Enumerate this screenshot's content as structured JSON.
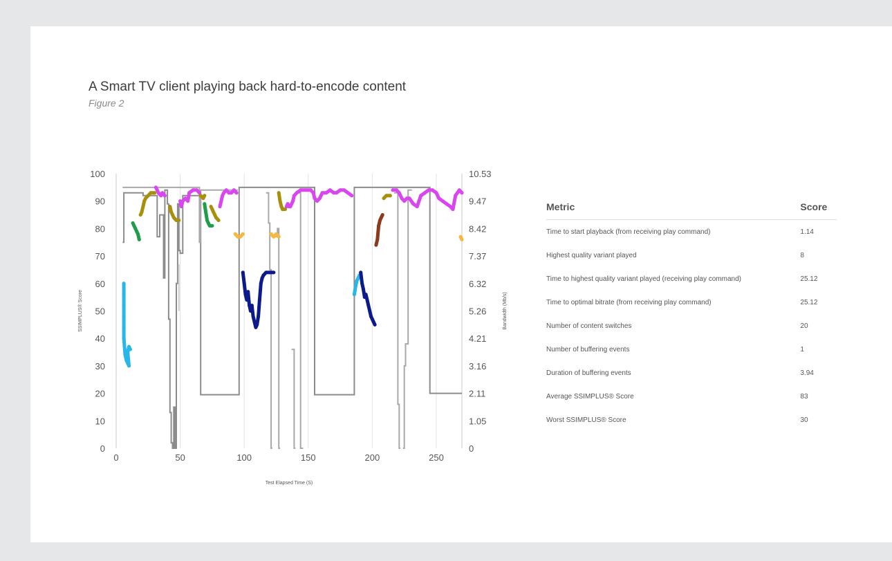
{
  "header": {
    "title": "A Smart TV client playing back hard-to-encode content",
    "subtitle": "Figure 2"
  },
  "chart_data": {
    "type": "line",
    "xlabel": "Test Elapsed Time (S)",
    "ylabel": "SSIMPLUS® Score",
    "y2label": "Bandwidth (Mb/s)",
    "xlim": [
      0,
      270
    ],
    "ylim": [
      0,
      100
    ],
    "x_ticks": [
      "0",
      "50",
      "100",
      "150",
      "200",
      "250"
    ],
    "y_ticks": [
      "0",
      "10",
      "20",
      "30",
      "40",
      "50",
      "60",
      "70",
      "80",
      "90",
      "100"
    ],
    "y2_ticks": [
      "0",
      "1.05",
      "2.11",
      "3.16",
      "4.21",
      "5.26",
      "6.32",
      "7.37",
      "8.42",
      "9.47",
      "10.53"
    ],
    "grid": "vertical",
    "series": [
      {
        "color": "#29b6e8",
        "points": [
          [
            6,
            60
          ],
          [
            6,
            56
          ],
          [
            6,
            52
          ],
          [
            6,
            48
          ],
          [
            6,
            44
          ],
          [
            6,
            40
          ],
          [
            7,
            34
          ],
          [
            8,
            32
          ],
          [
            9,
            31
          ],
          [
            10,
            30
          ],
          [
            9,
            35
          ],
          [
            10,
            37
          ],
          [
            11,
            36
          ]
        ]
      },
      {
        "color": "#1e9e4a",
        "points": [
          [
            13,
            82
          ],
          [
            14,
            81
          ],
          [
            15,
            80
          ],
          [
            16,
            79
          ],
          [
            17,
            78
          ],
          [
            18,
            76
          ]
        ]
      },
      {
        "color": "#a8900c",
        "points": [
          [
            19,
            85
          ],
          [
            20,
            86
          ],
          [
            21,
            88
          ],
          [
            22,
            90
          ],
          [
            23,
            91
          ],
          [
            25,
            92
          ],
          [
            27,
            93
          ],
          [
            30,
            93
          ]
        ]
      },
      {
        "color": "#d946ef",
        "points": [
          [
            31,
            95
          ],
          [
            32,
            94
          ],
          [
            33,
            93
          ],
          [
            35,
            92
          ],
          [
            36,
            93
          ],
          [
            38,
            92
          ]
        ]
      },
      {
        "color": "#a8900c",
        "points": [
          [
            42,
            88
          ],
          [
            43,
            86
          ],
          [
            44,
            85
          ],
          [
            45,
            84
          ],
          [
            47,
            83
          ],
          [
            49,
            83
          ]
        ]
      },
      {
        "color": "#d946ef",
        "points": [
          [
            50,
            90
          ],
          [
            51,
            88
          ],
          [
            52,
            90
          ],
          [
            54,
            91
          ],
          [
            56,
            90
          ],
          [
            57,
            93
          ],
          [
            60,
            94
          ],
          [
            63,
            94
          ],
          [
            65,
            93
          ]
        ]
      },
      {
        "color": "#a8900c",
        "points": [
          [
            66,
            92
          ],
          [
            68,
            91
          ],
          [
            69,
            92
          ]
        ]
      },
      {
        "color": "#1e9e4a",
        "points": [
          [
            69,
            89
          ],
          [
            70,
            86
          ],
          [
            71,
            83
          ],
          [
            72,
            82
          ],
          [
            73,
            81
          ],
          [
            75,
            81
          ]
        ]
      },
      {
        "color": "#a8900c",
        "points": [
          [
            74,
            88
          ],
          [
            75,
            87
          ],
          [
            76,
            86
          ],
          [
            77,
            85
          ],
          [
            78,
            84
          ],
          [
            80,
            83
          ]
        ]
      },
      {
        "color": "#d946ef",
        "points": [
          [
            81,
            88
          ],
          [
            82,
            90
          ],
          [
            83,
            92
          ],
          [
            84,
            93
          ],
          [
            86,
            94
          ],
          [
            88,
            93
          ],
          [
            90,
            93
          ],
          [
            92,
            94
          ],
          [
            94,
            93
          ]
        ]
      },
      {
        "color": "#f5b942",
        "points": [
          [
            93,
            78
          ],
          [
            95,
            77
          ],
          [
            97,
            77
          ],
          [
            99,
            78
          ]
        ]
      },
      {
        "color": "#0d1a8c",
        "points": [
          [
            99,
            64
          ],
          [
            100,
            60
          ],
          [
            101,
            56
          ],
          [
            102,
            54
          ],
          [
            103,
            57
          ],
          [
            104,
            52
          ],
          [
            105,
            50
          ],
          [
            106,
            52
          ],
          [
            107,
            48
          ],
          [
            108,
            46
          ],
          [
            109,
            44
          ],
          [
            110,
            45
          ],
          [
            111,
            48
          ],
          [
            112,
            54
          ],
          [
            113,
            60
          ],
          [
            114,
            62
          ],
          [
            115,
            63
          ],
          [
            117,
            64
          ],
          [
            120,
            64
          ],
          [
            123,
            64
          ]
        ]
      },
      {
        "color": "#f5b942",
        "points": [
          [
            121,
            78
          ],
          [
            123,
            77
          ],
          [
            125,
            78
          ],
          [
            127,
            77
          ]
        ]
      },
      {
        "color": "#a8900c",
        "points": [
          [
            127,
            93
          ],
          [
            128,
            90
          ],
          [
            129,
            88
          ],
          [
            130,
            87
          ],
          [
            132,
            87
          ]
        ]
      },
      {
        "color": "#d946ef",
        "points": [
          [
            133,
            88
          ],
          [
            134,
            89
          ],
          [
            135,
            88
          ],
          [
            136,
            88
          ],
          [
            138,
            90
          ],
          [
            139,
            92
          ],
          [
            141,
            93
          ],
          [
            144,
            94
          ],
          [
            148,
            94
          ],
          [
            152,
            94
          ],
          [
            154,
            93
          ],
          [
            155,
            91
          ],
          [
            157,
            90
          ],
          [
            159,
            91
          ],
          [
            161,
            93
          ],
          [
            164,
            93
          ],
          [
            167,
            94
          ],
          [
            170,
            93
          ],
          [
            172,
            93
          ],
          [
            175,
            94
          ],
          [
            178,
            94
          ],
          [
            181,
            93
          ],
          [
            184,
            92
          ]
        ]
      },
      {
        "color": "#29b6e8",
        "points": [
          [
            186,
            56
          ],
          [
            187,
            59
          ],
          [
            188,
            61
          ],
          [
            189,
            62
          ],
          [
            190,
            63
          ]
        ]
      },
      {
        "color": "#0d1a8c",
        "points": [
          [
            191,
            64
          ],
          [
            192,
            60
          ],
          [
            193,
            58
          ],
          [
            194,
            55
          ],
          [
            195,
            56
          ],
          [
            196,
            54
          ],
          [
            197,
            52
          ],
          [
            198,
            50
          ],
          [
            199,
            48
          ],
          [
            200,
            47
          ],
          [
            201,
            46
          ],
          [
            202,
            45
          ]
        ]
      },
      {
        "color": "#8b3a1e",
        "points": [
          [
            203,
            74
          ],
          [
            204,
            76
          ],
          [
            205,
            81
          ],
          [
            206,
            83
          ],
          [
            207,
            84
          ],
          [
            208,
            85
          ]
        ]
      },
      {
        "color": "#a8900c",
        "points": [
          [
            209,
            91
          ],
          [
            211,
            92
          ],
          [
            214,
            92
          ]
        ]
      },
      {
        "color": "#d946ef",
        "points": [
          [
            216,
            94
          ],
          [
            219,
            94
          ],
          [
            221,
            93
          ],
          [
            223,
            91
          ],
          [
            225,
            90
          ],
          [
            227,
            91
          ],
          [
            229,
            91
          ],
          [
            232,
            89
          ],
          [
            235,
            88
          ],
          [
            238,
            92
          ],
          [
            241,
            93
          ],
          [
            244,
            94
          ],
          [
            247,
            94
          ],
          [
            250,
            93
          ],
          [
            252,
            91
          ],
          [
            255,
            90
          ],
          [
            258,
            89
          ],
          [
            261,
            88
          ],
          [
            263,
            87
          ],
          [
            265,
            92
          ],
          [
            268,
            94
          ],
          [
            270,
            93
          ]
        ]
      },
      {
        "color": "#f5b942",
        "points": [
          [
            269,
            77
          ],
          [
            270,
            76
          ]
        ]
      }
    ],
    "bandwidth_lines": [
      {
        "color": "#8c8c8c",
        "points": [
          [
            5,
            75
          ],
          [
            6,
            75
          ],
          [
            6,
            93
          ],
          [
            21,
            93
          ],
          [
            21,
            92
          ],
          [
            32,
            92
          ],
          [
            32,
            77
          ],
          [
            34,
            77
          ],
          [
            34,
            85
          ],
          [
            37,
            85
          ],
          [
            37,
            62
          ],
          [
            38,
            62
          ],
          [
            38,
            94
          ],
          [
            40,
            94
          ],
          [
            40,
            89
          ],
          [
            41,
            89
          ],
          [
            41,
            47
          ],
          [
            42,
            47
          ],
          [
            42,
            13
          ],
          [
            43,
            13
          ],
          [
            43,
            2
          ],
          [
            44,
            2
          ],
          [
            44,
            0
          ],
          [
            45,
            0
          ],
          [
            45,
            15
          ],
          [
            46,
            15
          ],
          [
            46,
            0
          ],
          [
            47,
            0
          ],
          [
            47,
            60
          ],
          [
            48,
            60
          ],
          [
            48,
            89
          ],
          [
            49,
            89
          ],
          [
            49,
            72
          ],
          [
            50,
            72
          ],
          [
            50,
            71
          ],
          [
            52,
            71
          ],
          [
            52,
            92
          ],
          [
            66,
            92
          ],
          [
            66,
            19.5
          ],
          [
            96,
            19.5
          ],
          [
            96,
            95
          ],
          [
            155,
            95
          ],
          [
            155,
            19.5
          ],
          [
            186,
            19.5
          ],
          [
            186,
            95
          ],
          [
            245,
            95
          ],
          [
            245,
            20
          ],
          [
            270,
            20
          ]
        ]
      },
      {
        "color": "#a8a8a8",
        "points": [
          [
            5,
            95
          ],
          [
            65,
            95
          ],
          [
            65,
            75
          ],
          [
            66,
            75
          ],
          [
            66,
            94
          ],
          [
            95,
            94
          ]
        ]
      },
      {
        "color": "#a8a8a8",
        "points": [
          [
            117,
            93
          ],
          [
            119,
            93
          ],
          [
            119,
            82
          ],
          [
            120,
            82
          ],
          [
            120,
            65
          ],
          [
            121,
            65
          ],
          [
            121,
            0
          ],
          [
            122,
            0
          ]
        ]
      },
      {
        "color": "#a8a8a8",
        "points": [
          [
            124,
            77
          ],
          [
            126,
            77
          ],
          [
            126,
            80
          ],
          [
            127,
            80
          ],
          [
            127,
            0
          ],
          [
            128,
            0
          ]
        ]
      },
      {
        "color": "#a8a8a8",
        "points": [
          [
            137,
            36
          ],
          [
            139,
            36
          ],
          [
            139,
            0
          ],
          [
            140,
            0
          ]
        ]
      },
      {
        "color": "#a8a8a8",
        "points": [
          [
            142,
            93
          ],
          [
            144,
            93
          ],
          [
            144,
            0
          ],
          [
            146,
            0
          ]
        ]
      },
      {
        "color": "#a8a8a8",
        "points": [
          [
            217,
            93
          ],
          [
            220,
            93
          ],
          [
            220,
            16
          ],
          [
            221,
            16
          ],
          [
            221,
            0
          ],
          [
            222,
            0
          ]
        ]
      },
      {
        "color": "#a8a8a8",
        "points": [
          [
            224,
            0
          ],
          [
            225,
            0
          ],
          [
            225,
            30
          ],
          [
            226,
            30
          ],
          [
            226,
            38
          ],
          [
            228,
            38
          ],
          [
            228,
            94
          ],
          [
            231,
            94
          ]
        ]
      },
      {
        "color": "#d0d0d0",
        "points": [
          [
            49,
            50
          ],
          [
            49,
            67
          ]
        ]
      }
    ]
  },
  "table": {
    "header": {
      "metric": "Metric",
      "score": "Score"
    },
    "rows": [
      {
        "metric": "Time to start playback (from receiving play command)",
        "score": "1.14"
      },
      {
        "metric": "Highest quality variant played",
        "score": "8"
      },
      {
        "metric": "Time to highest quality variant played (receiving play command)",
        "score": "25.12"
      },
      {
        "metric": "Time to optimal bitrate (from receiving play command)",
        "score": "25.12"
      },
      {
        "metric": "Number of content switches",
        "score": "20"
      },
      {
        "metric": "Number of buffering events",
        "score": "1"
      },
      {
        "metric": "Duration of buffering events",
        "score": "3.94"
      },
      {
        "metric": "Average  SSIMPLUS® Score",
        "score": "83"
      },
      {
        "metric": "Worst  SSIMPLUS® Score",
        "score": "30"
      }
    ]
  }
}
